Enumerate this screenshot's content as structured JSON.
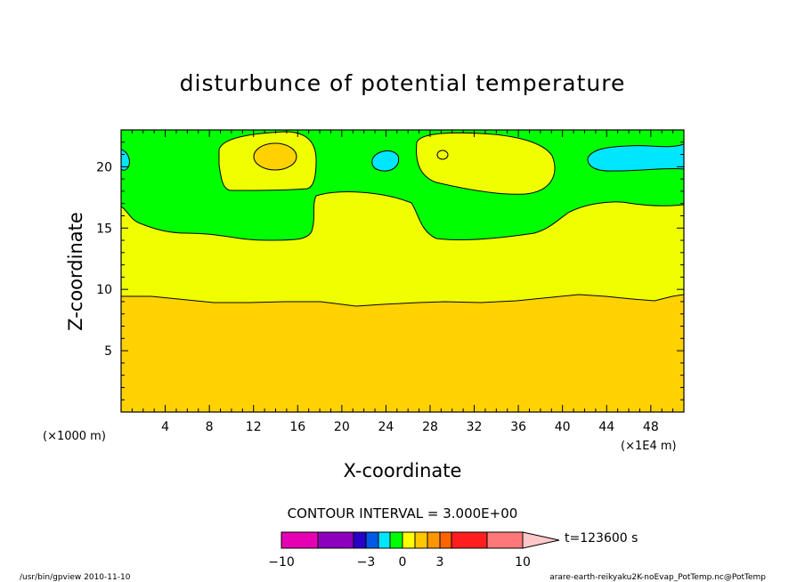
{
  "chart_data": {
    "type": "heatmap",
    "title": "disturbunce of potential temperature",
    "xlabel": "X-coordinate",
    "ylabel": "Z-coordinate",
    "x_unit_left": "(×1000 m)",
    "x_unit_right": "(×1E4 m)",
    "xlim": [
      0,
      51
    ],
    "ylim": [
      0,
      23
    ],
    "x_ticks": [
      "4",
      "8",
      "12",
      "16",
      "20",
      "24",
      "28",
      "32",
      "36",
      "40",
      "44",
      "48"
    ],
    "y_ticks": [
      "5",
      "10",
      "15",
      "20"
    ],
    "contour_interval_text": "CONTOUR INTERVAL = 3.000E+00",
    "time_label": "t=123600 s",
    "colorbar": {
      "labels": [
        "−10",
        "−3",
        "0",
        "3",
        "10"
      ],
      "colors": [
        "#e600b4",
        "#8c00be",
        "#2800c8",
        "#005ae6",
        "#00e6ff",
        "#00ff00",
        "#ffff00",
        "#ffc800",
        "#ff9600",
        "#ff6400",
        "#ff1e1e",
        "#ff7878",
        "#ffc8c8"
      ]
    },
    "regions": [
      {
        "name": "orange",
        "color": "#ffd200",
        "z_range": [
          0,
          9.5
        ]
      },
      {
        "name": "yellow",
        "color": "#f0ff00",
        "z_range": [
          9.5,
          15
        ]
      },
      {
        "name": "green",
        "color": "#00ff00",
        "z_range": [
          15,
          23
        ]
      }
    ],
    "contours": [
      {
        "level": "0-3 lower",
        "z": [
          9.5,
          9.6,
          9.3,
          9.0,
          8.9,
          8.7,
          8.9,
          9.0,
          9.1,
          9.2,
          9.5,
          9.6,
          9.5
        ]
      },
      {
        "level": "upper yellow boundary",
        "z": [
          16.5,
          15.2,
          14.6,
          14.3,
          14.0,
          17.0,
          17.2,
          14.5,
          14.1,
          14.3,
          15.2,
          16.7,
          16.6
        ]
      }
    ]
  },
  "footer": {
    "left": "/usr/bin/gpview  2010-11-10",
    "right": "arare-earth-reikyaku2K-noEvap_PotTemp.nc@PotTemp"
  }
}
